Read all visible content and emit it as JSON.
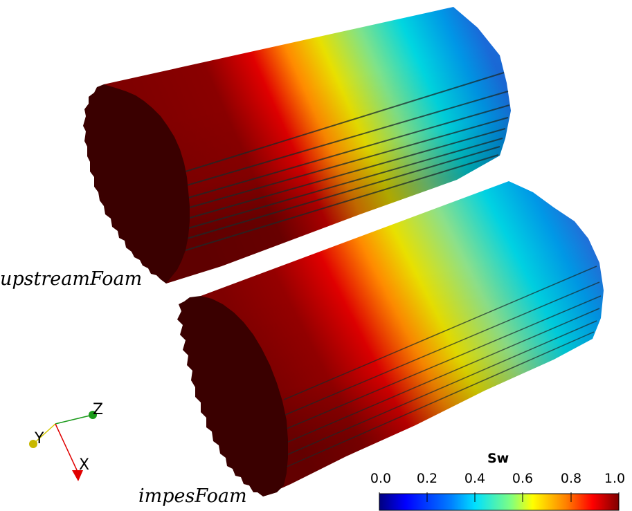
{
  "labels": {
    "model_a": "upstreamFoam",
    "model_b": "impesFoam"
  },
  "colorbar": {
    "title": "Sw",
    "ticks": [
      "0.0",
      "0.2",
      "0.4",
      "0.6",
      "0.8",
      "1.0"
    ],
    "range": [
      0.0,
      1.0
    ],
    "colormap": [
      "#00007f",
      "#0000ff",
      "#0080ff",
      "#00e0ff",
      "#80ff80",
      "#ffff00",
      "#ff8000",
      "#ff0000",
      "#7f0000"
    ]
  },
  "axes": {
    "x": "X",
    "y": "Y",
    "z": "Z",
    "x_color": "#e00000",
    "y_color": "#d4c800",
    "z_color": "#1a9a1a"
  }
}
